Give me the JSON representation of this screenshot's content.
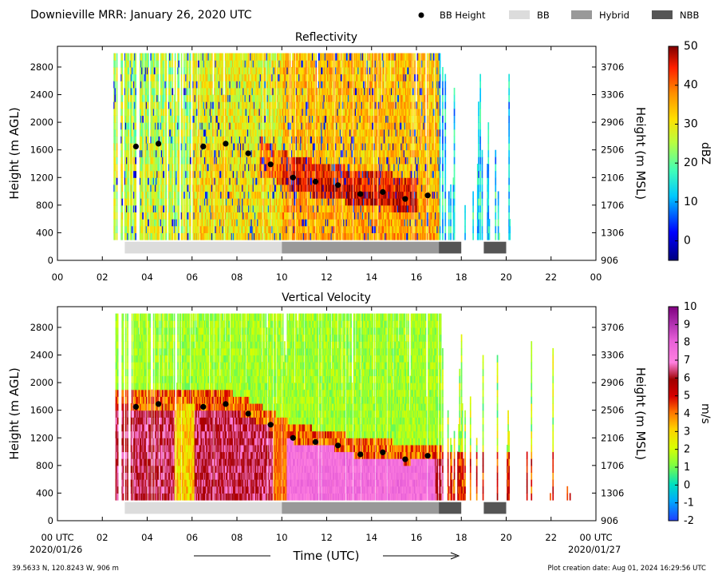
{
  "header": {
    "title": "Downieville MRR:  January 26, 2020 UTC",
    "legend": [
      {
        "label": "BB Height",
        "kind": "dot",
        "color": "#000000"
      },
      {
        "label": "BB",
        "kind": "box",
        "color": "#dcdcdc"
      },
      {
        "label": "Hybrid",
        "kind": "box",
        "color": "#999999"
      },
      {
        "label": "NBB",
        "kind": "box",
        "color": "#555555"
      }
    ]
  },
  "footer": {
    "location": "39.5633 N, 120.8243 W, 906 m",
    "creation": "Plot creation date: Aug 01, 2024 16:29:56 UTC",
    "xlabel": "Time (UTC)",
    "start_date": "2020/01/26",
    "end_date": "2020/01/27"
  },
  "colors": {
    "bb": "#dcdcdc",
    "hybrid": "#999999",
    "nbb": "#555555",
    "dot": "#000000"
  },
  "chart_data": [
    {
      "type": "heatmap",
      "title": "Reflectivity",
      "ylabel": "Height (m AGL)",
      "ylabel_right": "Height (m MSL)",
      "ylim": [
        0,
        3100
      ],
      "yticks": [
        0,
        400,
        800,
        1200,
        1600,
        2000,
        2400,
        2800
      ],
      "yticks_right": [
        "906",
        "1306",
        "1706",
        "2106",
        "2506",
        "2906",
        "3306",
        "3706"
      ],
      "xlim": [
        0,
        24
      ],
      "xticks": [
        "00",
        "02",
        "04",
        "06",
        "08",
        "10",
        "12",
        "14",
        "16",
        "18",
        "20",
        "22",
        "00"
      ],
      "colorbar": {
        "label": "dBZ",
        "min": -5,
        "max": 50,
        "ticks": [
          "0",
          "10",
          "20",
          "30",
          "40",
          "50"
        ]
      },
      "bb_height": {
        "x": [
          3.5,
          4.5,
          6.5,
          7.5,
          8.5,
          9.5,
          10.5,
          11.5,
          12.5,
          13.5,
          14.5,
          15.5,
          16.5
        ],
        "y": [
          1650,
          1690,
          1650,
          1690,
          1550,
          1390,
          1200,
          1140,
          1090,
          960,
          990,
          890,
          940
        ]
      },
      "bb_type": [
        {
          "type": "BB",
          "start": 3,
          "end": 10
        },
        {
          "type": "Hybrid",
          "start": 10,
          "end": 17
        },
        {
          "type": "NBB",
          "start": 17,
          "end": 18
        },
        {
          "type": "NBB",
          "start": 19,
          "end": 20
        }
      ]
    },
    {
      "type": "heatmap",
      "title": "Vertical Velocity",
      "ylabel": "Height (m AGL)",
      "ylabel_right": "Height (m MSL)",
      "ylim": [
        0,
        3100
      ],
      "yticks": [
        0,
        400,
        800,
        1200,
        1600,
        2000,
        2400,
        2800
      ],
      "yticks_right": [
        "906",
        "1306",
        "1706",
        "2106",
        "2506",
        "2906",
        "3306",
        "3706"
      ],
      "xlim": [
        0,
        24
      ],
      "xticks": [
        "00 UTC",
        "02",
        "04",
        "06",
        "08",
        "10",
        "12",
        "14",
        "16",
        "18",
        "20",
        "22",
        "00 UTC"
      ],
      "colorbar": {
        "label": "m/s",
        "min": -2,
        "max": 10,
        "ticks": [
          "-2",
          "-1",
          "0",
          "1",
          "2",
          "3",
          "4",
          "5",
          "6",
          "7",
          "8",
          "9",
          "10"
        ]
      },
      "bb_height": {
        "x": [
          3.5,
          4.5,
          6.5,
          7.5,
          8.5,
          9.5,
          10.5,
          11.5,
          12.5,
          13.5,
          14.5,
          15.5,
          16.5
        ],
        "y": [
          1650,
          1690,
          1650,
          1690,
          1550,
          1390,
          1200,
          1140,
          1090,
          960,
          990,
          890,
          940
        ]
      },
      "bb_type": [
        {
          "type": "BB",
          "start": 3,
          "end": 10
        },
        {
          "type": "Hybrid",
          "start": 10,
          "end": 17
        },
        {
          "type": "NBB",
          "start": 17,
          "end": 18
        },
        {
          "type": "NBB",
          "start": 19,
          "end": 20
        }
      ]
    }
  ]
}
